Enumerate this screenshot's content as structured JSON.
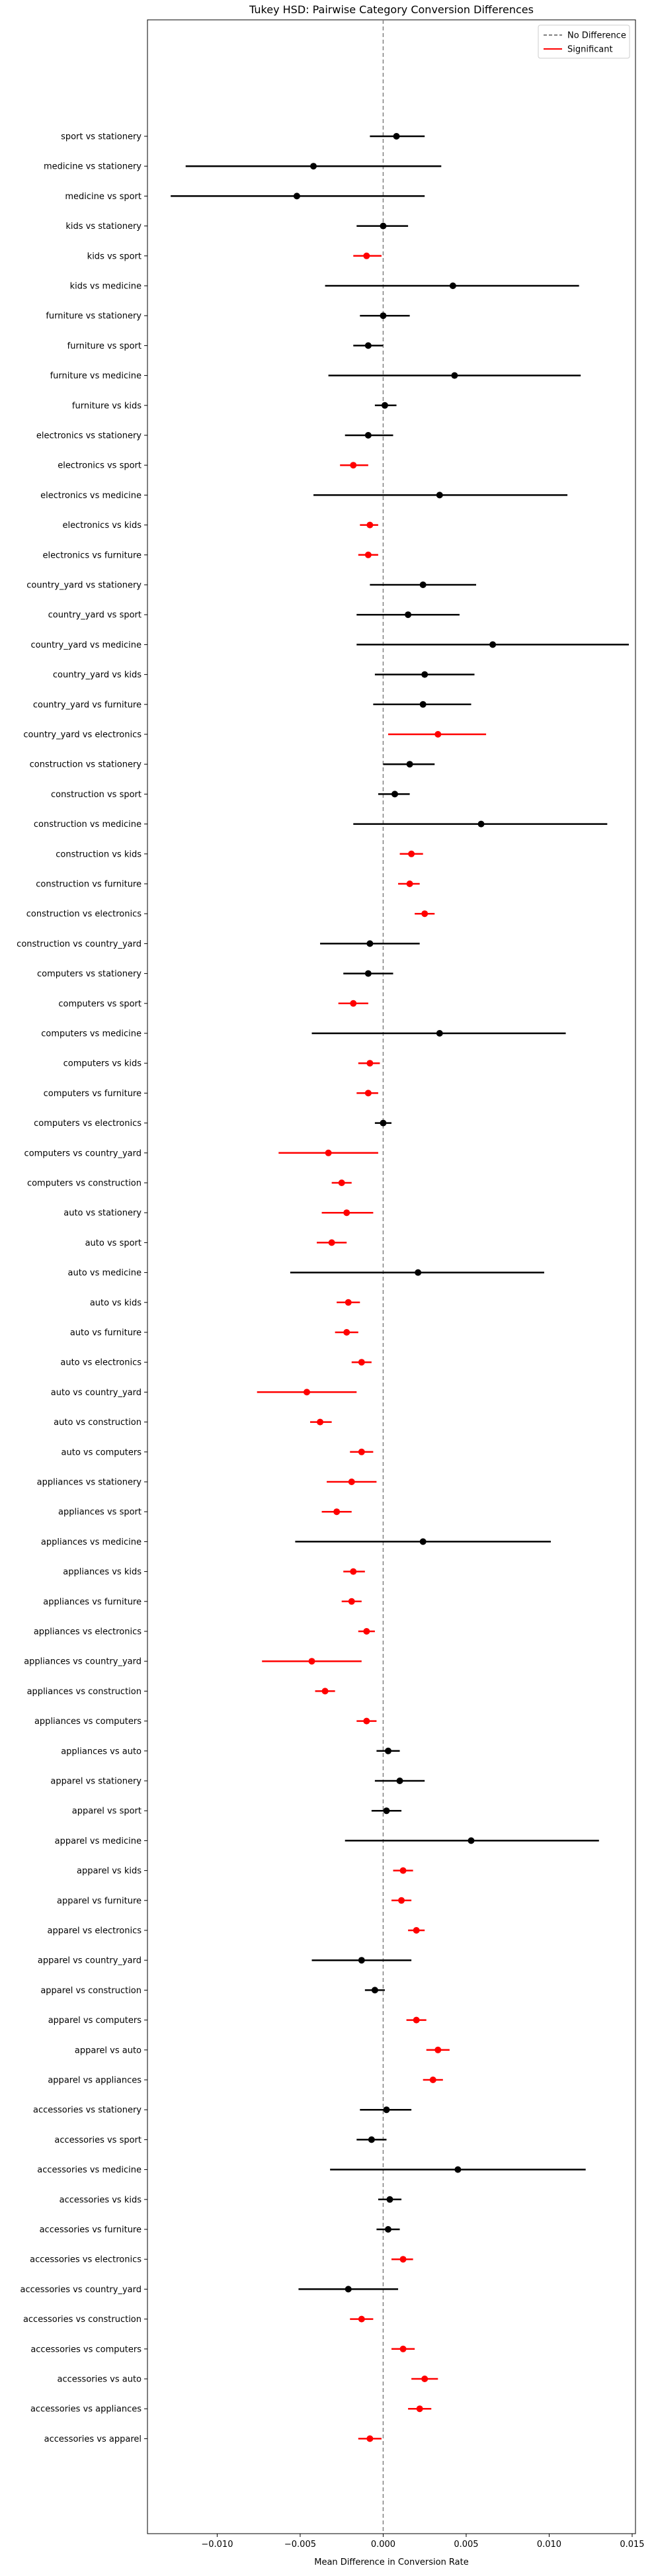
{
  "chart_data": {
    "type": "errorbar",
    "title": "Tukey HSD: Pairwise Category Conversion Differences",
    "xlabel": "Mean Difference in Conversion Rate",
    "ylabel": "",
    "xlim": [
      -0.0142,
      0.0152
    ],
    "xticks": [
      -0.01,
      -0.005,
      0.0,
      0.005,
      0.01,
      0.015
    ],
    "xtick_labels": [
      "−0.010",
      "−0.005",
      "0.000",
      "0.005",
      "0.010",
      "0.015"
    ],
    "reference_line": {
      "x": 0,
      "style": "dashed",
      "color": "#808080",
      "label": "No Difference"
    },
    "legend": {
      "placement": "top-right",
      "entries": [
        {
          "label": "No Difference",
          "color": "#808080",
          "style": "dashed"
        },
        {
          "label": "Significant",
          "color": "#ff0000",
          "style": "solid"
        }
      ]
    },
    "colors": {
      "significant": "#ff0000",
      "not_significant": "#000000"
    },
    "comparisons": [
      {
        "label": "sport vs stationery",
        "mean": 0.0008,
        "lower": -0.0008,
        "upper": 0.0025,
        "significant": false
      },
      {
        "label": "medicine vs stationery",
        "mean": -0.0042,
        "lower": -0.0119,
        "upper": 0.0035,
        "significant": false
      },
      {
        "label": "medicine vs sport",
        "mean": -0.0052,
        "lower": -0.0128,
        "upper": 0.0025,
        "significant": false
      },
      {
        "label": "kids vs stationery",
        "mean": 0.0,
        "lower": -0.0016,
        "upper": 0.0015,
        "significant": false
      },
      {
        "label": "kids vs sport",
        "mean": -0.001,
        "lower": -0.0018,
        "upper": -0.0001,
        "significant": true
      },
      {
        "label": "kids vs medicine",
        "mean": 0.0042,
        "lower": -0.0035,
        "upper": 0.0118,
        "significant": false
      },
      {
        "label": "furniture vs stationery",
        "mean": 0.0,
        "lower": -0.0014,
        "upper": 0.0016,
        "significant": false
      },
      {
        "label": "furniture vs sport",
        "mean": -0.0009,
        "lower": -0.0018,
        "upper": 0.0,
        "significant": false
      },
      {
        "label": "furniture vs medicine",
        "mean": 0.0043,
        "lower": -0.0033,
        "upper": 0.0119,
        "significant": false
      },
      {
        "label": "furniture vs kids",
        "mean": 0.0001,
        "lower": -0.0005,
        "upper": 0.0008,
        "significant": false
      },
      {
        "label": "electronics vs stationery",
        "mean": -0.0009,
        "lower": -0.0023,
        "upper": 0.0006,
        "significant": false
      },
      {
        "label": "electronics vs sport",
        "mean": -0.0018,
        "lower": -0.0026,
        "upper": -0.0009,
        "significant": true
      },
      {
        "label": "electronics vs medicine",
        "mean": 0.0034,
        "lower": -0.0042,
        "upper": 0.0111,
        "significant": false
      },
      {
        "label": "electronics vs kids",
        "mean": -0.0008,
        "lower": -0.0014,
        "upper": -0.0003,
        "significant": true
      },
      {
        "label": "electronics vs furniture",
        "mean": -0.0009,
        "lower": -0.0015,
        "upper": -0.0003,
        "significant": true
      },
      {
        "label": "country_yard vs stationery",
        "mean": 0.0024,
        "lower": -0.0008,
        "upper": 0.0056,
        "significant": false
      },
      {
        "label": "country_yard vs sport",
        "mean": 0.0015,
        "lower": -0.0016,
        "upper": 0.0046,
        "significant": false
      },
      {
        "label": "country_yard vs medicine",
        "mean": 0.0066,
        "lower": -0.0016,
        "upper": 0.0148,
        "significant": false
      },
      {
        "label": "country_yard vs kids",
        "mean": 0.0025,
        "lower": -0.0005,
        "upper": 0.0055,
        "significant": false
      },
      {
        "label": "country_yard vs furniture",
        "mean": 0.0024,
        "lower": -0.0006,
        "upper": 0.0053,
        "significant": false
      },
      {
        "label": "country_yard vs electronics",
        "mean": 0.0033,
        "lower": 0.0003,
        "upper": 0.0062,
        "significant": true
      },
      {
        "label": "construction vs stationery",
        "mean": 0.0016,
        "lower": 0.0,
        "upper": 0.0031,
        "significant": false
      },
      {
        "label": "construction vs sport",
        "mean": 0.0007,
        "lower": -0.0003,
        "upper": 0.0016,
        "significant": false
      },
      {
        "label": "construction vs medicine",
        "mean": 0.0059,
        "lower": -0.0018,
        "upper": 0.0135,
        "significant": false
      },
      {
        "label": "construction vs kids",
        "mean": 0.0017,
        "lower": 0.001,
        "upper": 0.0024,
        "significant": true
      },
      {
        "label": "construction vs furniture",
        "mean": 0.0016,
        "lower": 0.0009,
        "upper": 0.0022,
        "significant": true
      },
      {
        "label": "construction vs electronics",
        "mean": 0.0025,
        "lower": 0.0019,
        "upper": 0.0031,
        "significant": true
      },
      {
        "label": "construction vs country_yard",
        "mean": -0.0008,
        "lower": -0.0038,
        "upper": 0.0022,
        "significant": false
      },
      {
        "label": "computers vs stationery",
        "mean": -0.0009,
        "lower": -0.0024,
        "upper": 0.0006,
        "significant": false
      },
      {
        "label": "computers vs sport",
        "mean": -0.0018,
        "lower": -0.0027,
        "upper": -0.0009,
        "significant": true
      },
      {
        "label": "computers vs medicine",
        "mean": 0.0034,
        "lower": -0.0043,
        "upper": 0.011,
        "significant": false
      },
      {
        "label": "computers vs kids",
        "mean": -0.0008,
        "lower": -0.0015,
        "upper": -0.0002,
        "significant": true
      },
      {
        "label": "computers vs furniture",
        "mean": -0.0009,
        "lower": -0.0016,
        "upper": -0.0003,
        "significant": true
      },
      {
        "label": "computers vs electronics",
        "mean": 0.0,
        "lower": -0.0005,
        "upper": 0.0005,
        "significant": false
      },
      {
        "label": "computers vs country_yard",
        "mean": -0.0033,
        "lower": -0.0063,
        "upper": -0.0003,
        "significant": true
      },
      {
        "label": "computers vs construction",
        "mean": -0.0025,
        "lower": -0.0031,
        "upper": -0.0019,
        "significant": true
      },
      {
        "label": "auto vs stationery",
        "mean": -0.0022,
        "lower": -0.0037,
        "upper": -0.0006,
        "significant": true
      },
      {
        "label": "auto vs sport",
        "mean": -0.0031,
        "lower": -0.004,
        "upper": -0.0022,
        "significant": true
      },
      {
        "label": "auto vs medicine",
        "mean": 0.0021,
        "lower": -0.0056,
        "upper": 0.0097,
        "significant": false
      },
      {
        "label": "auto vs kids",
        "mean": -0.0021,
        "lower": -0.0028,
        "upper": -0.0014,
        "significant": true
      },
      {
        "label": "auto vs furniture",
        "mean": -0.0022,
        "lower": -0.0029,
        "upper": -0.0015,
        "significant": true
      },
      {
        "label": "auto vs electronics",
        "mean": -0.0013,
        "lower": -0.0019,
        "upper": -0.0007,
        "significant": true
      },
      {
        "label": "auto vs country_yard",
        "mean": -0.0046,
        "lower": -0.0076,
        "upper": -0.0016,
        "significant": true
      },
      {
        "label": "auto vs construction",
        "mean": -0.0038,
        "lower": -0.0044,
        "upper": -0.0031,
        "significant": true
      },
      {
        "label": "auto vs computers",
        "mean": -0.0013,
        "lower": -0.002,
        "upper": -0.0006,
        "significant": true
      },
      {
        "label": "appliances vs stationery",
        "mean": -0.0019,
        "lower": -0.0034,
        "upper": -0.0004,
        "significant": true
      },
      {
        "label": "appliances vs sport",
        "mean": -0.0028,
        "lower": -0.0037,
        "upper": -0.0019,
        "significant": true
      },
      {
        "label": "appliances vs medicine",
        "mean": 0.0024,
        "lower": -0.0053,
        "upper": 0.0101,
        "significant": false
      },
      {
        "label": "appliances vs kids",
        "mean": -0.0018,
        "lower": -0.0024,
        "upper": -0.0011,
        "significant": true
      },
      {
        "label": "appliances vs furniture",
        "mean": -0.0019,
        "lower": -0.0025,
        "upper": -0.0013,
        "significant": true
      },
      {
        "label": "appliances vs electronics",
        "mean": -0.001,
        "lower": -0.0015,
        "upper": -0.0005,
        "significant": true
      },
      {
        "label": "appliances vs country_yard",
        "mean": -0.0043,
        "lower": -0.0073,
        "upper": -0.0013,
        "significant": true
      },
      {
        "label": "appliances vs construction",
        "mean": -0.0035,
        "lower": -0.0041,
        "upper": -0.0029,
        "significant": true
      },
      {
        "label": "appliances vs computers",
        "mean": -0.001,
        "lower": -0.0016,
        "upper": -0.0004,
        "significant": true
      },
      {
        "label": "appliances vs auto",
        "mean": 0.0003,
        "lower": -0.0004,
        "upper": 0.001,
        "significant": false
      },
      {
        "label": "apparel vs stationery",
        "mean": 0.001,
        "lower": -0.0005,
        "upper": 0.0025,
        "significant": false
      },
      {
        "label": "apparel vs sport",
        "mean": 0.0002,
        "lower": -0.0007,
        "upper": 0.0011,
        "significant": false
      },
      {
        "label": "apparel vs medicine",
        "mean": 0.0053,
        "lower": -0.0023,
        "upper": 0.013,
        "significant": false
      },
      {
        "label": "apparel vs kids",
        "mean": 0.0012,
        "lower": 0.0006,
        "upper": 0.0018,
        "significant": true
      },
      {
        "label": "apparel vs furniture",
        "mean": 0.0011,
        "lower": 0.0005,
        "upper": 0.0017,
        "significant": true
      },
      {
        "label": "apparel vs electronics",
        "mean": 0.002,
        "lower": 0.0015,
        "upper": 0.0025,
        "significant": true
      },
      {
        "label": "apparel vs country_yard",
        "mean": -0.0013,
        "lower": -0.0043,
        "upper": 0.0017,
        "significant": false
      },
      {
        "label": "apparel vs construction",
        "mean": -0.0005,
        "lower": -0.0011,
        "upper": 0.0001,
        "significant": false
      },
      {
        "label": "apparel vs computers",
        "mean": 0.002,
        "lower": 0.0014,
        "upper": 0.0026,
        "significant": true
      },
      {
        "label": "apparel vs auto",
        "mean": 0.0033,
        "lower": 0.0026,
        "upper": 0.004,
        "significant": true
      },
      {
        "label": "apparel vs appliances",
        "mean": 0.003,
        "lower": 0.0024,
        "upper": 0.0036,
        "significant": true
      },
      {
        "label": "accessories vs stationery",
        "mean": 0.0002,
        "lower": -0.0014,
        "upper": 0.0017,
        "significant": false
      },
      {
        "label": "accessories vs sport",
        "mean": -0.0007,
        "lower": -0.0016,
        "upper": 0.0002,
        "significant": false
      },
      {
        "label": "accessories vs medicine",
        "mean": 0.0045,
        "lower": -0.0032,
        "upper": 0.0122,
        "significant": false
      },
      {
        "label": "accessories vs kids",
        "mean": 0.0004,
        "lower": -0.0003,
        "upper": 0.0011,
        "significant": false
      },
      {
        "label": "accessories vs furniture",
        "mean": 0.0003,
        "lower": -0.0004,
        "upper": 0.001,
        "significant": false
      },
      {
        "label": "accessories vs electronics",
        "mean": 0.0012,
        "lower": 0.0005,
        "upper": 0.0018,
        "significant": true
      },
      {
        "label": "accessories vs country_yard",
        "mean": -0.0021,
        "lower": -0.0051,
        "upper": 0.0009,
        "significant": false
      },
      {
        "label": "accessories vs construction",
        "mean": -0.0013,
        "lower": -0.002,
        "upper": -0.0006,
        "significant": true
      },
      {
        "label": "accessories vs computers",
        "mean": 0.0012,
        "lower": 0.0005,
        "upper": 0.0019,
        "significant": true
      },
      {
        "label": "accessories vs auto",
        "mean": 0.0025,
        "lower": 0.0017,
        "upper": 0.0033,
        "significant": true
      },
      {
        "label": "accessories vs appliances",
        "mean": 0.0022,
        "lower": 0.0015,
        "upper": 0.0029,
        "significant": true
      },
      {
        "label": "accessories vs apparel",
        "mean": -0.0008,
        "lower": -0.0015,
        "upper": -0.0001,
        "significant": true
      }
    ]
  }
}
